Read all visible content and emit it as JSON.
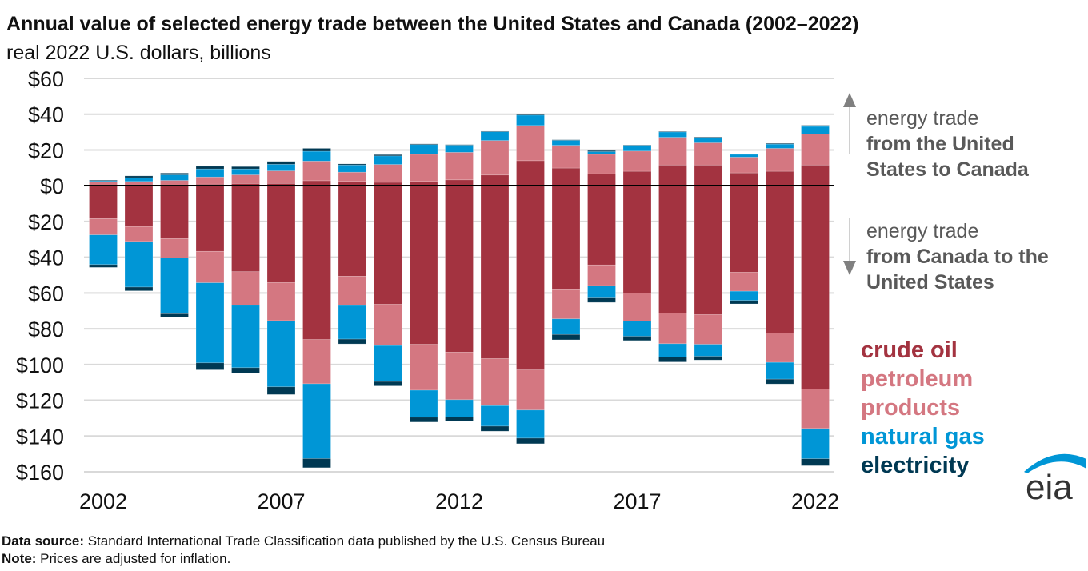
{
  "title": "Annual value of selected energy trade between the United States and Canada (2002–2022)",
  "subtitle": "real 2022 U.S. dollars, billions",
  "annotations": {
    "up": {
      "line1": "energy trade",
      "line2": "from the United",
      "line3": "States to Canada"
    },
    "down": {
      "line1": "energy trade",
      "line2": "from Canada to the",
      "line3": "United States"
    }
  },
  "legend": {
    "crude": "crude oil",
    "petroleum1": "petroleum",
    "petroleum2": "products",
    "gas": "natural gas",
    "electricity": "electricity"
  },
  "footer": {
    "source_label": "Data source:",
    "source_text": " Standard International Trade Classification data published by the U.S. Census Bureau",
    "note_label": "Note:",
    "note_text": " Prices are adjusted for inflation."
  },
  "logo": "eia",
  "colors": {
    "crude": "#a33340",
    "petroleum": "#d47781",
    "gas": "#0096d6",
    "electricity": "#003953",
    "annotation": "#595959"
  },
  "chart_data": {
    "type": "bar",
    "stacked": true,
    "title": "Annual value of selected energy trade between the United States and Canada (2002–2022)",
    "ylabel": "real 2022 U.S. dollars, billions",
    "ylim": [
      -160,
      60
    ],
    "yticks": [
      60,
      40,
      20,
      0,
      -20,
      -40,
      -60,
      -80,
      -100,
      -120,
      -140,
      -160
    ],
    "ytick_labels": [
      "$60",
      "$40",
      "$20",
      "$0",
      "$20",
      "$40",
      "$60",
      "$80",
      "$100",
      "$120",
      "$140",
      "$160"
    ],
    "xtick_labels": [
      "2002",
      "2007",
      "2012",
      "2017",
      "2022"
    ],
    "grid": true,
    "legend_position": "right",
    "categories": [
      2002,
      2003,
      2004,
      2005,
      2006,
      2007,
      2008,
      2009,
      2010,
      2011,
      2012,
      2013,
      2014,
      2015,
      2016,
      2017,
      2018,
      2019,
      2020,
      2021,
      2022
    ],
    "series": [
      {
        "name": "crude oil",
        "direction": "US to Canada",
        "values": [
          0.0,
          0.0,
          0.0,
          0.9,
          1.2,
          1.3,
          2.8,
          2.4,
          1.9,
          2.4,
          3.3,
          6.0,
          14.0,
          9.9,
          6.7,
          8.1,
          11.6,
          11.6,
          7.2,
          8.1,
          11.6
        ]
      },
      {
        "name": "petroleum products",
        "direction": "US to Canada",
        "values": [
          2.1,
          2.4,
          3.0,
          4.0,
          4.9,
          7.0,
          11.0,
          5.2,
          10.0,
          15.2,
          15.4,
          19.3,
          19.7,
          12.7,
          10.9,
          11.3,
          15.5,
          12.4,
          8.8,
          12.8,
          17.3
        ]
      },
      {
        "name": "natural gas",
        "direction": "US to Canada",
        "values": [
          0.6,
          2.1,
          3.1,
          4.5,
          3.3,
          3.7,
          5.5,
          4.0,
          4.8,
          5.4,
          4.0,
          4.9,
          5.8,
          2.8,
          1.5,
          3.3,
          3.0,
          2.8,
          1.6,
          2.4,
          4.3
        ]
      },
      {
        "name": "electricity",
        "direction": "US to Canada",
        "values": [
          0.4,
          1.0,
          1.0,
          1.5,
          1.3,
          1.6,
          1.6,
          0.6,
          0.7,
          0.4,
          0.3,
          0.3,
          0.4,
          0.3,
          0.6,
          0.1,
          0.3,
          0.4,
          0.3,
          0.4,
          0.6
        ]
      },
      {
        "name": "crude oil",
        "direction": "Canada to US",
        "values": [
          -18.4,
          -22.8,
          -29.6,
          -36.7,
          -48.1,
          -54.2,
          -86.0,
          -50.6,
          -66.3,
          -88.7,
          -93.1,
          -96.7,
          -103.0,
          -58.2,
          -44.3,
          -60.0,
          -71.2,
          -72.1,
          -48.4,
          -82.4,
          -113.7
        ]
      },
      {
        "name": "petroleum products",
        "direction": "Canada to US",
        "values": [
          -9.1,
          -8.4,
          -10.7,
          -17.6,
          -18.8,
          -21.3,
          -24.8,
          -16.4,
          -23.1,
          -25.7,
          -26.6,
          -26.3,
          -22.5,
          -16.3,
          -11.6,
          -15.7,
          -17.2,
          -16.6,
          -10.6,
          -16.4,
          -22.1
        ]
      },
      {
        "name": "natural gas",
        "direction": "Canada to US",
        "values": [
          -16.6,
          -25.5,
          -31.3,
          -44.8,
          -34.9,
          -37.0,
          -41.8,
          -18.8,
          -20.1,
          -15.1,
          -9.6,
          -11.5,
          -15.7,
          -8.7,
          -6.9,
          -8.5,
          -7.5,
          -6.7,
          -5.2,
          -9.4,
          -16.9
        ]
      },
      {
        "name": "electricity",
        "direction": "Canada to US",
        "values": [
          -1.6,
          -2.1,
          -1.9,
          -3.9,
          -3.0,
          -4.3,
          -5.1,
          -2.7,
          -2.5,
          -2.7,
          -2.5,
          -2.8,
          -3.1,
          -3.0,
          -2.5,
          -2.4,
          -2.7,
          -2.1,
          -1.9,
          -2.7,
          -3.9
        ]
      }
    ]
  }
}
